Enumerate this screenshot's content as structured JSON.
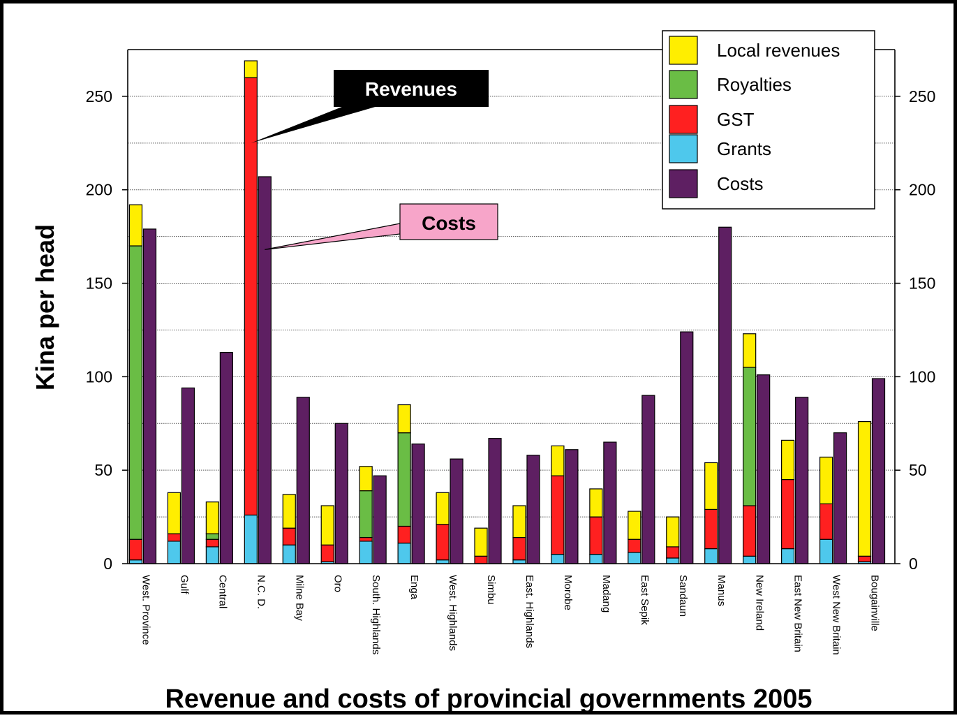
{
  "chart_data": {
    "type": "bar",
    "title": "Revenue and costs of provincial governments 2005",
    "ylabel": "Kina per head",
    "xlabel": "",
    "ylim": [
      0,
      275
    ],
    "yticks": [
      0,
      50,
      100,
      150,
      200,
      250
    ],
    "gridlines": [
      25,
      50,
      75,
      100,
      125,
      150,
      175,
      200,
      225,
      250
    ],
    "grid": true,
    "legend_position": "top-right",
    "categories": [
      "West. Province",
      "Gulf",
      "Central",
      "N.C. D.",
      "Milne Bay",
      "Oro",
      "South. Highlands",
      "Enga",
      "West. Highlands",
      "Simbu",
      "East. Highlands",
      "Morobe",
      "Madang",
      "East Sepik",
      "Sandaun",
      "Manus",
      "New Ireland",
      "East New Britain",
      "West New Britain",
      "Bougainville"
    ],
    "stacked_series": [
      {
        "name": "Grants",
        "color": "#4ec8ec",
        "values": [
          2,
          12,
          9,
          26,
          10,
          1,
          12,
          11,
          2,
          0,
          2,
          5,
          5,
          6,
          3,
          8,
          4,
          8,
          13,
          1
        ]
      },
      {
        "name": "GST",
        "color": "#ff2020",
        "values": [
          11,
          4,
          4,
          234,
          9,
          9,
          2,
          9,
          19,
          4,
          12,
          42,
          20,
          7,
          6,
          21,
          27,
          37,
          19,
          3
        ]
      },
      {
        "name": "Royalties",
        "color": "#6abd45",
        "values": [
          157,
          0,
          3,
          0,
          0,
          0,
          25,
          50,
          0,
          0,
          0,
          0,
          0,
          0,
          0,
          0,
          74,
          0,
          0,
          0
        ]
      },
      {
        "name": "Local revenues",
        "color": "#ffee00",
        "values": [
          22,
          22,
          17,
          9,
          18,
          21,
          13,
          15,
          17,
          15,
          17,
          16,
          15,
          15,
          16,
          25,
          18,
          21,
          25,
          72
        ]
      }
    ],
    "cost_series": {
      "name": "Costs",
      "color": "#5e1f62",
      "values": [
        179,
        94,
        113,
        207,
        89,
        75,
        47,
        64,
        56,
        67,
        58,
        61,
        65,
        90,
        124,
        180,
        101,
        89,
        70,
        99
      ]
    },
    "legend": [
      {
        "name": "Local revenues",
        "color": "#ffee00"
      },
      {
        "name": "Royalties",
        "color": "#6abd45"
      },
      {
        "name": "GST",
        "color": "#ff2020"
      },
      {
        "name": "Grants",
        "color": "#4ec8ec"
      },
      {
        "name": "Costs",
        "color": "#5e1f62"
      }
    ],
    "annotations": [
      {
        "text": "Revenues",
        "box_color": "#000000",
        "text_color": "#ffffff",
        "points_to_category": "N.C. D.",
        "points_to_series": "revenues",
        "points_to_value": 225
      },
      {
        "text": "Costs",
        "box_color": "#f7a5c9",
        "text_color": "#000000",
        "points_to_category": "N.C. D.",
        "points_to_series": "costs",
        "points_to_value": 168
      }
    ]
  }
}
